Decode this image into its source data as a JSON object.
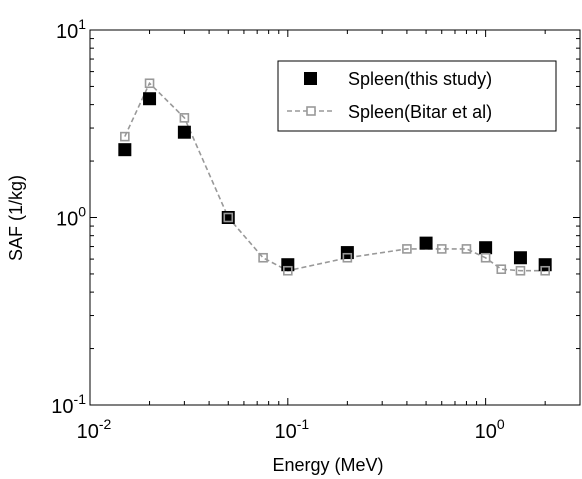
{
  "chart_data": {
    "type": "scatter",
    "xlabel": "Energy (MeV)",
    "ylabel": "SAF (1/kg)",
    "x_scale": "log",
    "y_scale": "log",
    "xlim": [
      0.01,
      3
    ],
    "ylim": [
      0.1,
      10
    ],
    "x_ticks": [
      {
        "value": 0.01,
        "base": "10",
        "exp": "-2"
      },
      {
        "value": 0.1,
        "base": "10",
        "exp": "-1"
      },
      {
        "value": 1,
        "base": "10",
        "exp": "0"
      }
    ],
    "y_ticks": [
      {
        "value": 0.1,
        "base": "10",
        "exp": "-1"
      },
      {
        "value": 1,
        "base": "10",
        "exp": "0"
      },
      {
        "value": 10,
        "base": "10",
        "exp": "1"
      }
    ],
    "grid": false,
    "legend_position": "top-right",
    "series": [
      {
        "name": "Spleen(this study)",
        "marker": "filled-square",
        "color": "#000000",
        "line": false,
        "x": [
          0.015,
          0.02,
          0.03,
          0.05,
          0.1,
          0.2,
          0.5,
          1.0,
          1.5,
          2.0
        ],
        "y": [
          2.3,
          4.3,
          2.85,
          1.0,
          0.56,
          0.65,
          0.73,
          0.69,
          0.61,
          0.56
        ]
      },
      {
        "name": "Spleen(Bitar et al)",
        "marker": "open-square",
        "color": "#999999",
        "line": "dashed",
        "x": [
          0.015,
          0.02,
          0.03,
          0.05,
          0.075,
          0.1,
          0.2,
          0.4,
          0.6,
          0.8,
          1.0,
          1.2,
          1.5,
          2.0
        ],
        "y": [
          2.7,
          5.2,
          3.4,
          1.0,
          0.61,
          0.52,
          0.61,
          0.68,
          0.68,
          0.68,
          0.61,
          0.53,
          0.52,
          0.52
        ]
      }
    ]
  }
}
